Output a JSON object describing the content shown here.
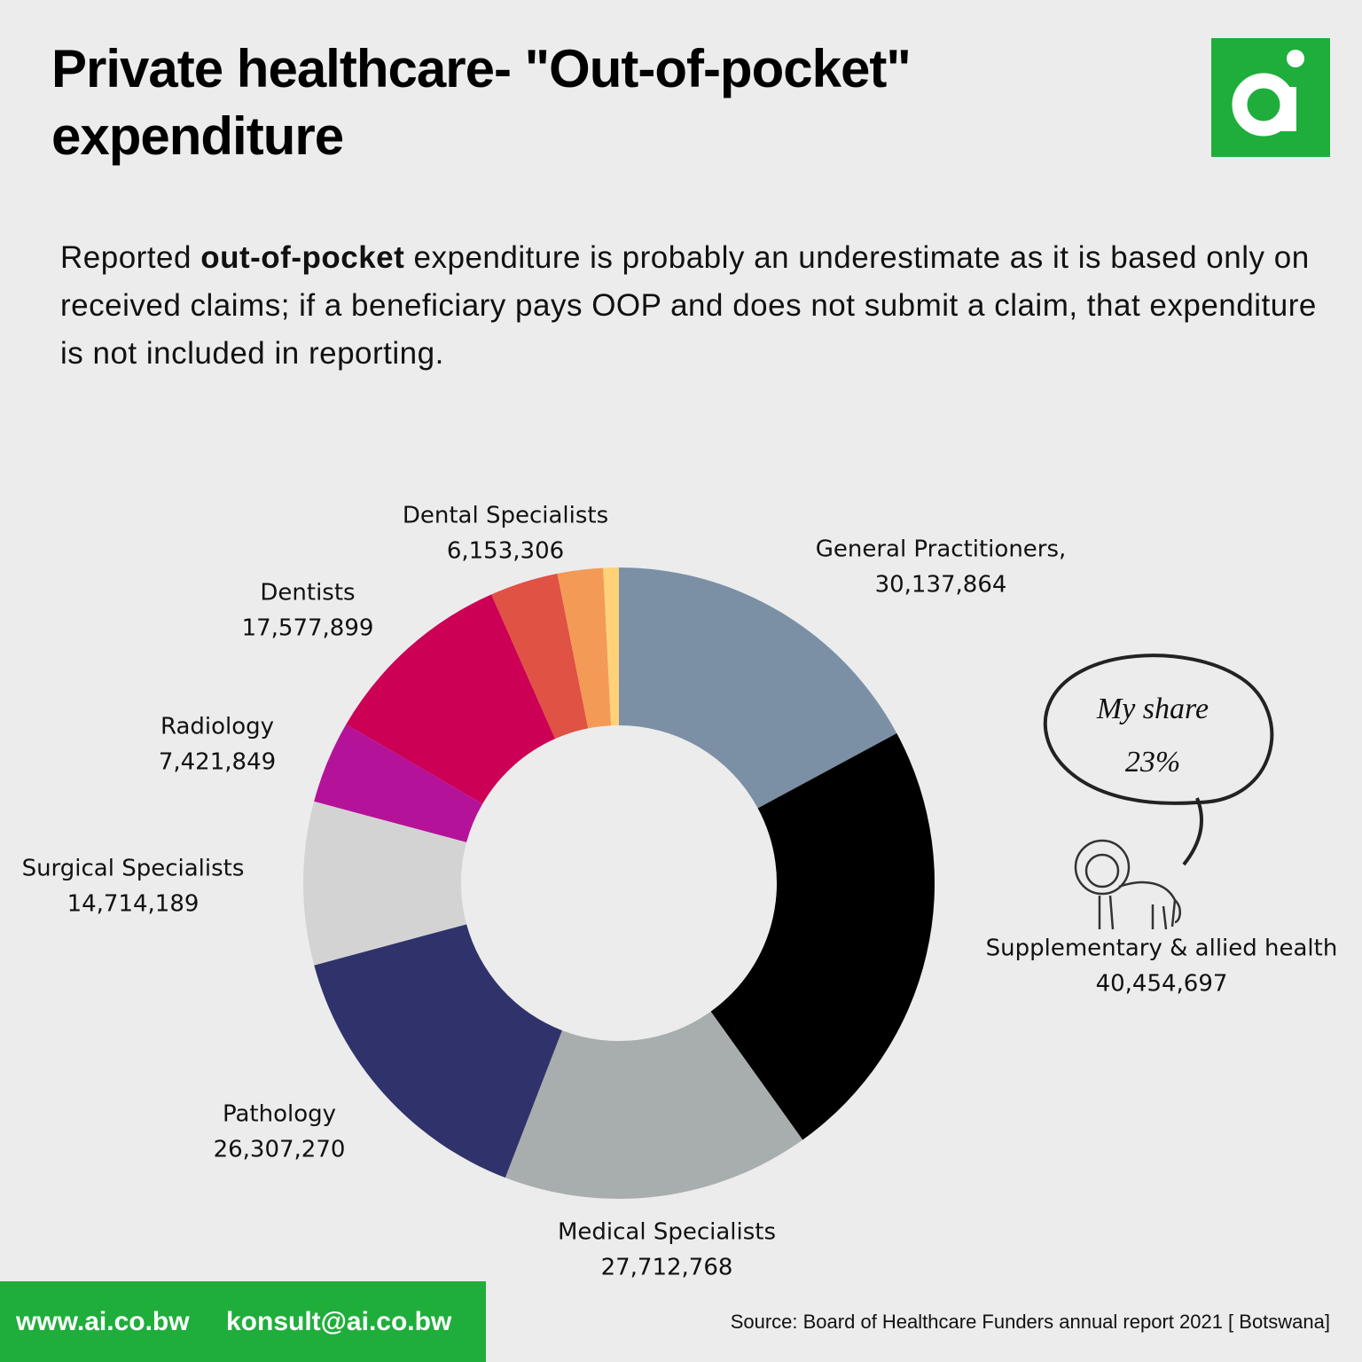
{
  "header": {
    "title": "Private healthcare- \"Out-of-pocket\" expenditure"
  },
  "description": [
    "Reported ",
    "out-of-pocket",
    " expenditure is probably an underestimate as it is based only on received claims; if a beneficiary pays OOP and does not submit a claim, that expenditure is not included in reporting."
  ],
  "chart_data": {
    "type": "donut",
    "categories": [
      "General Practitioners,",
      "Supplementary & allied health",
      "Medical Specialists",
      "Pathology",
      "Surgical Specialists",
      "Radiology",
      "Dentists",
      "Dental Specialists",
      null,
      null
    ],
    "values": [
      30137864,
      40454697,
      27712768,
      26307270,
      14714189,
      7421849,
      17577899,
      6153306,
      4100000,
      1400000
    ],
    "value_labels": [
      "30,137,864",
      "40,454,697",
      "27,712,768",
      "26,307,270",
      "14,714,189",
      "7,421,849",
      "17,577,899",
      "6,153,306",
      null,
      null
    ],
    "colors": [
      "#7b90a5",
      "#000000",
      "#a8aeae",
      "#30336b",
      "#d3d3d3",
      "#b5129a",
      "#cc0055",
      "#e05244",
      "#f49a57",
      "#ffd27a"
    ],
    "annotation": [
      "My share",
      "23%"
    ]
  },
  "footer": {
    "website": "www.ai.co.bw",
    "email": "konsult@ai.co.bw",
    "source": "Source: Board of Healthcare Funders annual report 2021 [ Botswana]"
  }
}
